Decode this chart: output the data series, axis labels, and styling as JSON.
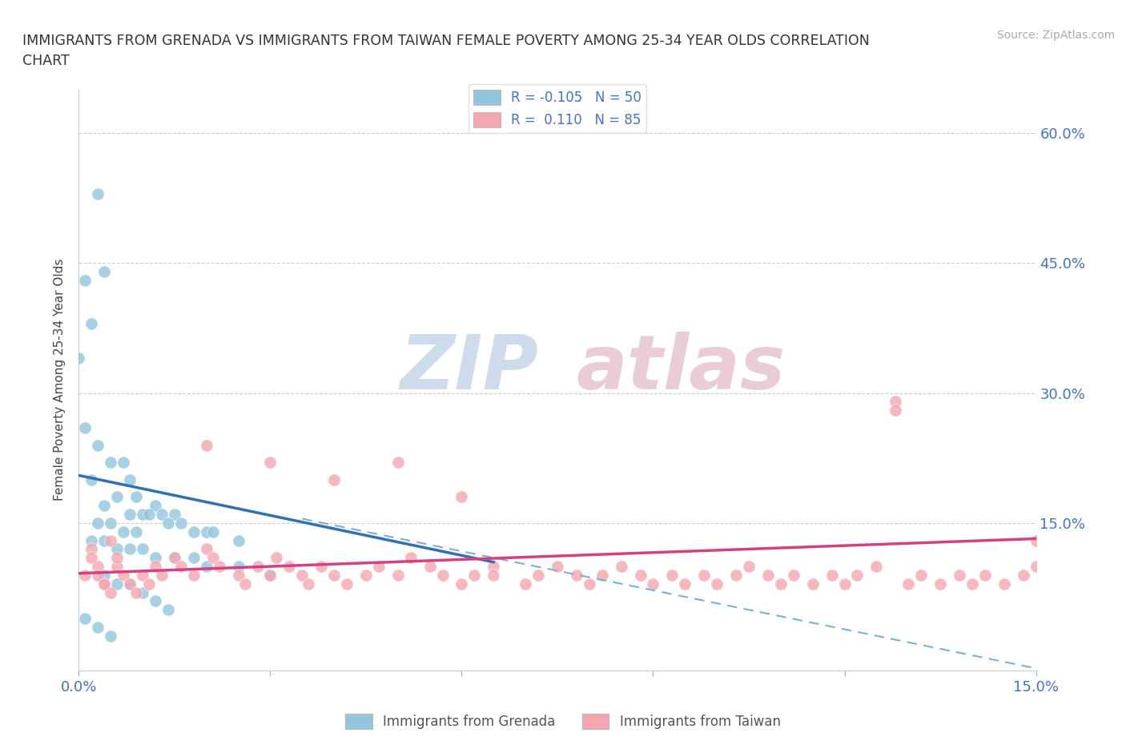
{
  "title_line1": "IMMIGRANTS FROM GRENADA VS IMMIGRANTS FROM TAIWAN FEMALE POVERTY AMONG 25-34 YEAR OLDS CORRELATION",
  "title_line2": "CHART",
  "source_text": "Source: ZipAtlas.com",
  "ylabel": "Female Poverty Among 25-34 Year Olds",
  "xlim": [
    0.0,
    0.15
  ],
  "ylim": [
    -0.02,
    0.65
  ],
  "legend_labels": [
    "Immigrants from Grenada",
    "Immigrants from Taiwan"
  ],
  "legend_r1": "R = -0.105",
  "legend_r2": "R =  0.110",
  "legend_n1": "N = 50",
  "legend_n2": "N = 85",
  "grenada_color": "#92c5de",
  "taiwan_color": "#f4a6b0",
  "grenada_line_color": "#3070b3",
  "taiwan_line_color": "#d44080",
  "dashed_color": "#7bafd4",
  "watermark_zip": "ZIP",
  "watermark_atlas": "atlas",
  "background_color": "#ffffff",
  "tick_color": "#4472c4",
  "grenada_x": [
    0.003,
    0.004,
    0.001,
    0.002,
    0.0,
    0.001,
    0.003,
    0.005,
    0.007,
    0.002,
    0.008,
    0.009,
    0.006,
    0.004,
    0.012,
    0.01,
    0.015,
    0.011,
    0.013,
    0.008,
    0.016,
    0.014,
    0.005,
    0.003,
    0.018,
    0.02,
    0.007,
    0.009,
    0.021,
    0.025,
    0.002,
    0.004,
    0.006,
    0.008,
    0.01,
    0.012,
    0.015,
    0.018,
    0.02,
    0.025,
    0.03,
    0.004,
    0.006,
    0.008,
    0.01,
    0.012,
    0.014,
    0.001,
    0.003,
    0.005
  ],
  "grenada_y": [
    0.53,
    0.44,
    0.43,
    0.38,
    0.34,
    0.26,
    0.24,
    0.22,
    0.22,
    0.2,
    0.2,
    0.18,
    0.18,
    0.17,
    0.17,
    0.16,
    0.16,
    0.16,
    0.16,
    0.16,
    0.15,
    0.15,
    0.15,
    0.15,
    0.14,
    0.14,
    0.14,
    0.14,
    0.14,
    0.13,
    0.13,
    0.13,
    0.12,
    0.12,
    0.12,
    0.11,
    0.11,
    0.11,
    0.1,
    0.1,
    0.09,
    0.09,
    0.08,
    0.08,
    0.07,
    0.06,
    0.05,
    0.04,
    0.03,
    0.02
  ],
  "taiwan_x": [
    0.002,
    0.003,
    0.001,
    0.004,
    0.005,
    0.002,
    0.003,
    0.004,
    0.006,
    0.007,
    0.008,
    0.009,
    0.005,
    0.006,
    0.01,
    0.011,
    0.012,
    0.013,
    0.015,
    0.016,
    0.018,
    0.02,
    0.021,
    0.022,
    0.025,
    0.026,
    0.028,
    0.03,
    0.031,
    0.033,
    0.035,
    0.036,
    0.038,
    0.04,
    0.042,
    0.045,
    0.047,
    0.05,
    0.052,
    0.055,
    0.057,
    0.06,
    0.062,
    0.065,
    0.065,
    0.07,
    0.072,
    0.075,
    0.078,
    0.08,
    0.082,
    0.085,
    0.088,
    0.09,
    0.093,
    0.095,
    0.098,
    0.1,
    0.103,
    0.105,
    0.108,
    0.11,
    0.112,
    0.115,
    0.118,
    0.12,
    0.122,
    0.125,
    0.128,
    0.128,
    0.13,
    0.132,
    0.135,
    0.138,
    0.14,
    0.142,
    0.145,
    0.148,
    0.15,
    0.15,
    0.02,
    0.03,
    0.04,
    0.05,
    0.06
  ],
  "taiwan_y": [
    0.12,
    0.1,
    0.09,
    0.08,
    0.07,
    0.11,
    0.09,
    0.08,
    0.1,
    0.09,
    0.08,
    0.07,
    0.13,
    0.11,
    0.09,
    0.08,
    0.1,
    0.09,
    0.11,
    0.1,
    0.09,
    0.12,
    0.11,
    0.1,
    0.09,
    0.08,
    0.1,
    0.09,
    0.11,
    0.1,
    0.09,
    0.08,
    0.1,
    0.09,
    0.08,
    0.09,
    0.1,
    0.09,
    0.11,
    0.1,
    0.09,
    0.08,
    0.09,
    0.1,
    0.09,
    0.08,
    0.09,
    0.1,
    0.09,
    0.08,
    0.09,
    0.1,
    0.09,
    0.08,
    0.09,
    0.08,
    0.09,
    0.08,
    0.09,
    0.1,
    0.09,
    0.08,
    0.09,
    0.08,
    0.09,
    0.08,
    0.09,
    0.1,
    0.29,
    0.28,
    0.08,
    0.09,
    0.08,
    0.09,
    0.08,
    0.09,
    0.08,
    0.09,
    0.1,
    0.13,
    0.24,
    0.22,
    0.2,
    0.22,
    0.18
  ],
  "grenada_line_x": [
    0.0,
    0.065
  ],
  "grenada_line_y": [
    0.205,
    0.105
  ],
  "taiwan_line_x": [
    0.0,
    0.15
  ],
  "taiwan_line_y": [
    0.092,
    0.132
  ],
  "dashed_line_x": [
    0.035,
    0.155
  ],
  "dashed_line_y": [
    0.155,
    -0.025
  ]
}
